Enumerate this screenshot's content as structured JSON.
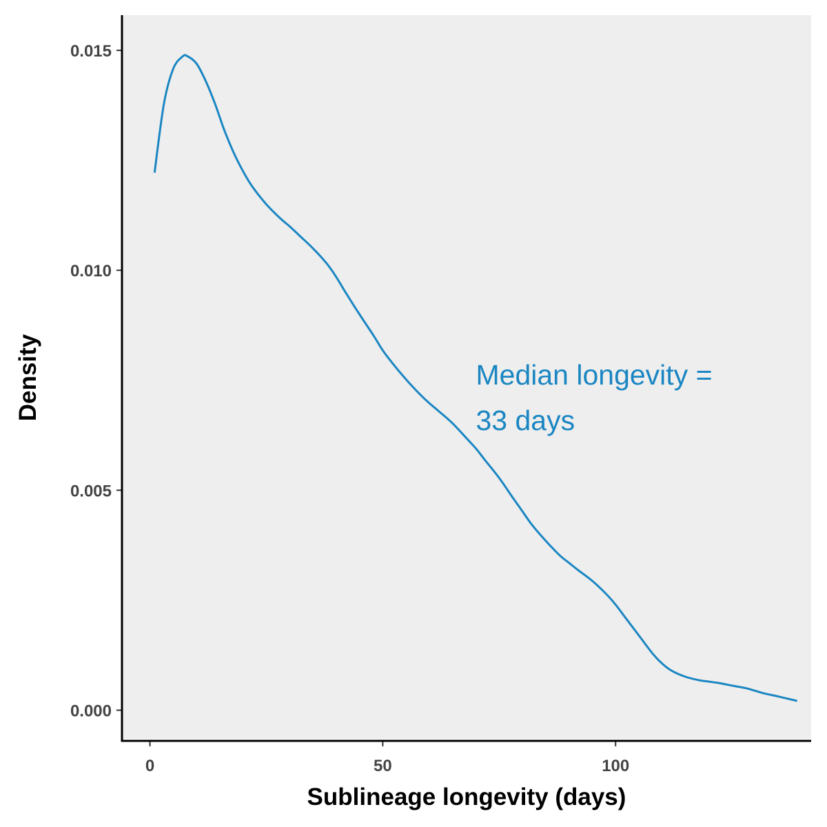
{
  "chart_data": {
    "type": "line",
    "title": "",
    "xlabel": "Sublineage longevity (days)",
    "ylabel": "Density",
    "xlim": [
      -6,
      142
    ],
    "ylim": [
      -0.00065,
      0.0158
    ],
    "x_ticks": [
      0,
      50,
      100
    ],
    "x_tick_labels": [
      "0",
      "50",
      "100"
    ],
    "y_ticks": [
      0.0,
      0.005,
      0.01,
      0.015
    ],
    "y_tick_labels": [
      "0.000",
      "0.005",
      "0.010",
      "0.015"
    ],
    "grid": false,
    "panel_background": "#eeeeee",
    "line_color": "#1a86c2",
    "annotation": {
      "line1": "Median longevity =",
      "line2": "33 days",
      "x": 70,
      "y": 0.0074
    },
    "series": [
      {
        "x": [
          1,
          3,
          5,
          7,
          8,
          10,
          12,
          14,
          16,
          18,
          20,
          22,
          25,
          28,
          30,
          32,
          35,
          38,
          40,
          42,
          45,
          48,
          50,
          52,
          55,
          58,
          60,
          62,
          65,
          68,
          70,
          72,
          75,
          78,
          80,
          82,
          85,
          88,
          90,
          92,
          95,
          98,
          100,
          102,
          105,
          108,
          110,
          112,
          115,
          118,
          120,
          122,
          125,
          128,
          130,
          132,
          135,
          139
        ],
        "y": [
          0.01222,
          0.01378,
          0.01458,
          0.01486,
          0.01487,
          0.0147,
          0.0143,
          0.01378,
          0.01318,
          0.01267,
          0.01225,
          0.0119,
          0.0115,
          0.01118,
          0.011,
          0.0108,
          0.0105,
          0.01015,
          0.00985,
          0.0095,
          0.009,
          0.00852,
          0.00818,
          0.0079,
          0.00752,
          0.00718,
          0.00698,
          0.0068,
          0.00652,
          0.00618,
          0.00595,
          0.00568,
          0.00528,
          0.00482,
          0.00452,
          0.00422,
          0.00385,
          0.00352,
          0.00335,
          0.00318,
          0.00294,
          0.00264,
          0.0024,
          0.00212,
          0.0017,
          0.00128,
          0.00106,
          0.0009,
          0.00076,
          0.00068,
          0.00065,
          0.00062,
          0.00056,
          0.0005,
          0.00044,
          0.00038,
          0.00031,
          0.00021
        ]
      }
    ]
  }
}
